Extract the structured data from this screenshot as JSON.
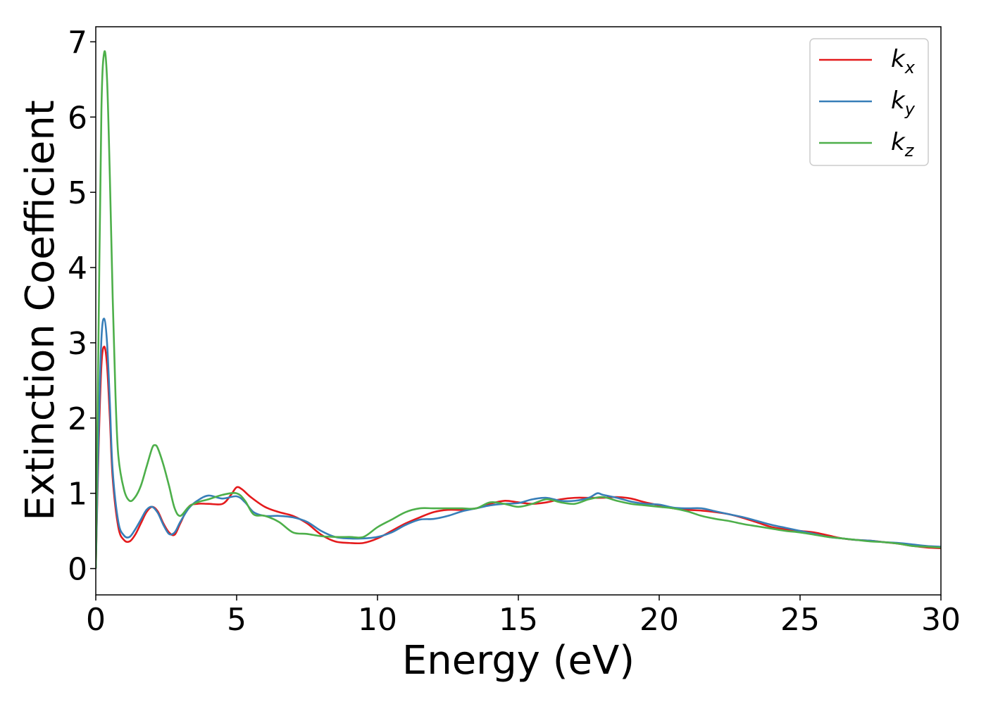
{
  "chart_data": {
    "type": "line",
    "xlabel": "Energy (eV)",
    "ylabel": "Extinction Coefficient",
    "xlim": [
      0,
      30
    ],
    "ylim": [
      -0.35,
      7.2
    ],
    "xticks": [
      "0",
      "5",
      "10",
      "15",
      "20",
      "25",
      "30"
    ],
    "yticks": [
      "0",
      "1",
      "2",
      "3",
      "4",
      "5",
      "6",
      "7"
    ],
    "grid": false,
    "legend_position": "top-right",
    "series": [
      {
        "name": "k",
        "subscript": "x",
        "color": "#e41a1c",
        "x": [
          0,
          0.1,
          0.2,
          0.3,
          0.4,
          0.5,
          0.6,
          0.8,
          1.0,
          1.2,
          1.4,
          1.6,
          1.8,
          2.0,
          2.2,
          2.4,
          2.6,
          2.8,
          3.0,
          3.3,
          3.6,
          4.0,
          4.5,
          4.8,
          5.0,
          5.2,
          5.5,
          6.0,
          6.5,
          7.0,
          7.5,
          8.0,
          8.5,
          9.0,
          9.5,
          10.0,
          10.5,
          11.0,
          11.5,
          12.0,
          12.5,
          13.0,
          13.5,
          14.0,
          14.5,
          15.0,
          15.5,
          16.0,
          16.5,
          17.0,
          17.5,
          18.0,
          18.5,
          19.0,
          19.5,
          20.0,
          20.5,
          21.0,
          21.5,
          22.0,
          22.5,
          23.0,
          23.5,
          24.0,
          24.5,
          25.0,
          25.5,
          26.0,
          26.5,
          27.0,
          27.5,
          28.0,
          28.5,
          29.0,
          29.5,
          30.0
        ],
        "y": [
          0.0,
          1.6,
          2.7,
          2.95,
          2.7,
          2.0,
          1.2,
          0.55,
          0.38,
          0.36,
          0.45,
          0.6,
          0.75,
          0.82,
          0.76,
          0.6,
          0.48,
          0.45,
          0.6,
          0.82,
          0.86,
          0.86,
          0.86,
          0.98,
          1.08,
          1.05,
          0.95,
          0.82,
          0.75,
          0.7,
          0.6,
          0.45,
          0.36,
          0.34,
          0.34,
          0.4,
          0.5,
          0.6,
          0.68,
          0.75,
          0.78,
          0.78,
          0.8,
          0.86,
          0.9,
          0.88,
          0.86,
          0.88,
          0.92,
          0.94,
          0.94,
          0.94,
          0.95,
          0.93,
          0.88,
          0.84,
          0.8,
          0.78,
          0.77,
          0.75,
          0.72,
          0.67,
          0.61,
          0.55,
          0.52,
          0.5,
          0.48,
          0.44,
          0.4,
          0.38,
          0.37,
          0.35,
          0.33,
          0.3,
          0.28,
          0.27
        ]
      },
      {
        "name": "k",
        "subscript": "y",
        "color": "#377eb8",
        "x": [
          0,
          0.1,
          0.2,
          0.3,
          0.4,
          0.5,
          0.6,
          0.8,
          1.0,
          1.2,
          1.4,
          1.6,
          1.8,
          2.0,
          2.2,
          2.4,
          2.6,
          2.8,
          3.0,
          3.3,
          3.6,
          4.0,
          4.5,
          5.0,
          5.3,
          5.6,
          6.0,
          6.5,
          7.0,
          7.5,
          8.0,
          8.5,
          9.0,
          9.5,
          10.0,
          10.5,
          11.0,
          11.5,
          12.0,
          12.5,
          13.0,
          13.5,
          14.0,
          14.5,
          15.0,
          15.5,
          16.0,
          16.5,
          17.0,
          17.5,
          17.8,
          18.0,
          18.5,
          19.0,
          19.5,
          20.0,
          20.5,
          21.0,
          21.5,
          22.0,
          22.5,
          23.0,
          23.5,
          24.0,
          24.5,
          25.0,
          25.5,
          26.0,
          26.5,
          27.0,
          27.5,
          28.0,
          28.5,
          29.0,
          29.5,
          30.0
        ],
        "y": [
          0.0,
          1.8,
          3.05,
          3.32,
          3.0,
          2.2,
          1.3,
          0.62,
          0.44,
          0.42,
          0.52,
          0.65,
          0.78,
          0.82,
          0.74,
          0.58,
          0.46,
          0.48,
          0.62,
          0.8,
          0.9,
          0.97,
          0.93,
          0.96,
          0.88,
          0.75,
          0.7,
          0.7,
          0.68,
          0.62,
          0.5,
          0.42,
          0.4,
          0.4,
          0.42,
          0.48,
          0.58,
          0.65,
          0.66,
          0.7,
          0.76,
          0.8,
          0.84,
          0.86,
          0.87,
          0.92,
          0.94,
          0.9,
          0.9,
          0.94,
          1.0,
          0.98,
          0.94,
          0.89,
          0.86,
          0.85,
          0.81,
          0.8,
          0.8,
          0.76,
          0.72,
          0.68,
          0.63,
          0.58,
          0.54,
          0.5,
          0.46,
          0.42,
          0.4,
          0.38,
          0.37,
          0.35,
          0.34,
          0.32,
          0.3,
          0.29
        ]
      },
      {
        "name": "k",
        "subscript": "z",
        "color": "#4daf4a",
        "x": [
          0,
          0.1,
          0.2,
          0.3,
          0.4,
          0.5,
          0.6,
          0.7,
          0.8,
          1.0,
          1.2,
          1.4,
          1.6,
          1.8,
          2.0,
          2.1,
          2.2,
          2.4,
          2.6,
          2.8,
          3.0,
          3.3,
          3.6,
          4.0,
          4.5,
          5.0,
          5.3,
          5.6,
          6.0,
          6.5,
          7.0,
          7.5,
          8.0,
          8.5,
          9.0,
          9.5,
          10.0,
          10.5,
          11.0,
          11.5,
          12.0,
          12.5,
          13.0,
          13.5,
          14.0,
          14.5,
          15.0,
          15.5,
          16.0,
          16.5,
          17.0,
          17.5,
          18.0,
          18.5,
          19.0,
          19.5,
          20.0,
          20.5,
          21.0,
          21.5,
          22.0,
          22.5,
          23.0,
          23.5,
          24.0,
          24.5,
          25.0,
          25.5,
          26.0,
          26.5,
          27.0,
          27.5,
          28.0,
          28.5,
          29.0,
          29.5,
          30.0
        ],
        "y": [
          0.0,
          3.2,
          6.1,
          6.86,
          6.5,
          5.2,
          3.6,
          2.3,
          1.5,
          1.05,
          0.9,
          0.95,
          1.1,
          1.35,
          1.6,
          1.64,
          1.6,
          1.38,
          1.1,
          0.8,
          0.7,
          0.82,
          0.88,
          0.92,
          0.98,
          1.0,
          0.9,
          0.72,
          0.7,
          0.62,
          0.48,
          0.46,
          0.43,
          0.42,
          0.42,
          0.42,
          0.55,
          0.65,
          0.75,
          0.8,
          0.8,
          0.8,
          0.8,
          0.8,
          0.88,
          0.86,
          0.82,
          0.86,
          0.92,
          0.88,
          0.86,
          0.92,
          0.95,
          0.9,
          0.86,
          0.84,
          0.82,
          0.8,
          0.76,
          0.7,
          0.66,
          0.63,
          0.59,
          0.56,
          0.53,
          0.5,
          0.48,
          0.45,
          0.42,
          0.4,
          0.38,
          0.36,
          0.35,
          0.33,
          0.3,
          0.29,
          0.28
        ]
      }
    ]
  }
}
